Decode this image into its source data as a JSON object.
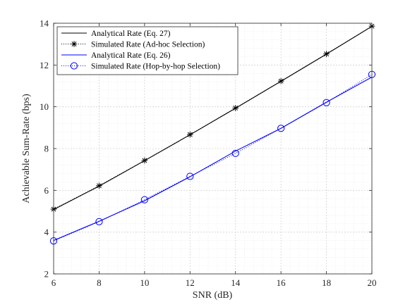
{
  "chart_data": {
    "type": "line",
    "title": "",
    "xlabel": "SNR (dB)",
    "ylabel": "Achievable Sum-Rate (bps)",
    "xlim": [
      6,
      20
    ],
    "ylim": [
      2,
      14
    ],
    "xticks": [
      6,
      8,
      10,
      12,
      14,
      16,
      18,
      20
    ],
    "yticks": [
      2,
      4,
      6,
      8,
      10,
      12,
      14
    ],
    "grid": true,
    "legend_position": "top-left",
    "x": [
      6,
      8,
      10,
      12,
      14,
      16,
      18,
      20
    ],
    "series": [
      {
        "name": "Analytical Rate (Eq. 27)",
        "values": [
          5.08,
          6.2,
          7.42,
          8.66,
          9.93,
          11.22,
          12.52,
          13.85
        ],
        "color": "#000000",
        "line": "solid",
        "marker": "none"
      },
      {
        "name": "Simulated Rate (Ad-hoc Selection)",
        "values": [
          5.1,
          6.22,
          7.43,
          8.67,
          9.94,
          11.23,
          12.53,
          13.86
        ],
        "color": "#000000",
        "line": "dotted",
        "marker": "asterisk"
      },
      {
        "name": "Analytical Rate (Eq. 26)",
        "values": [
          3.6,
          4.52,
          5.5,
          6.65,
          7.88,
          8.97,
          10.22,
          11.42
        ],
        "color": "#0000ff",
        "line": "solid",
        "marker": "none"
      },
      {
        "name": "Simulated Rate (Hop-by-hop Selection)",
        "values": [
          3.58,
          4.5,
          5.55,
          6.67,
          7.77,
          8.97,
          10.2,
          11.55
        ],
        "color": "#0000ff",
        "line": "dotted",
        "marker": "circle"
      }
    ]
  }
}
